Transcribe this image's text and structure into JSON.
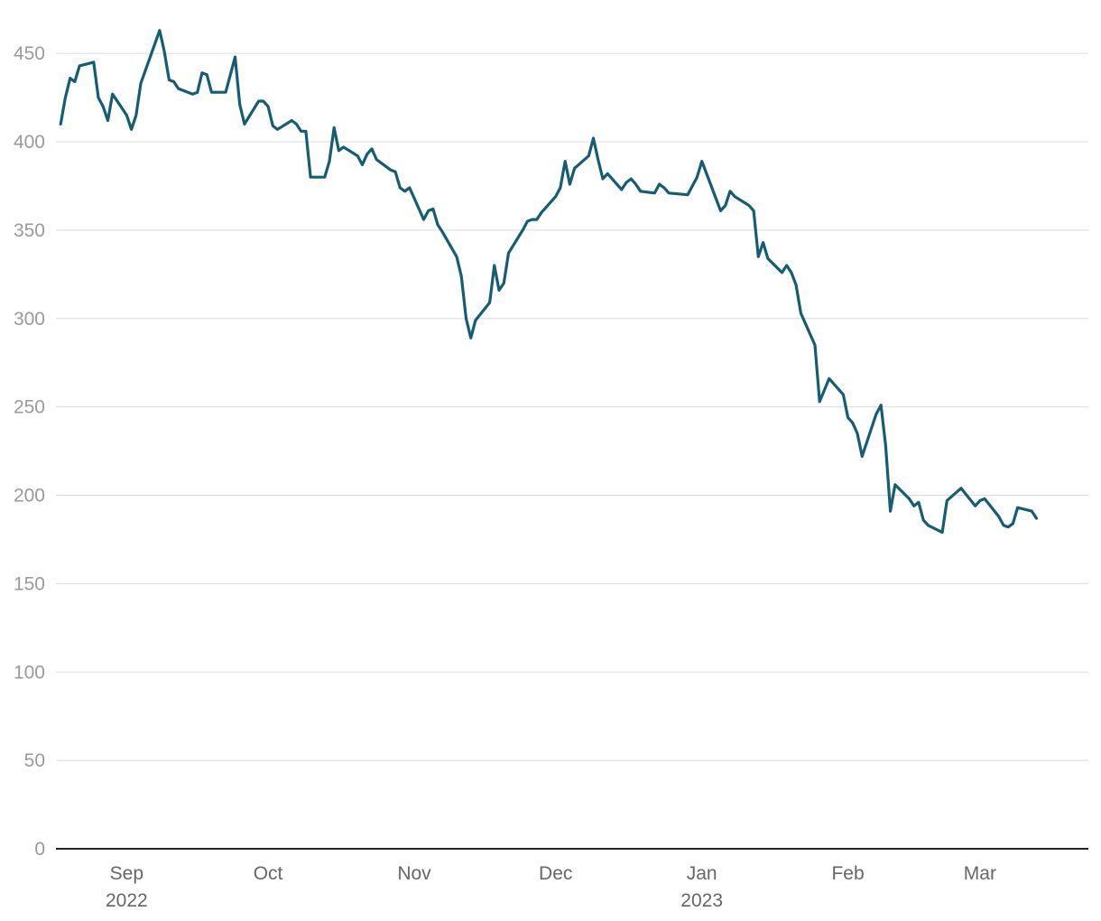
{
  "colors": {
    "series": "#165d74",
    "grid": "#dcdcdc",
    "axis": "#222222"
  },
  "chart_data": {
    "type": "line",
    "title": "",
    "xlabel": "",
    "ylabel": "",
    "ylim": [
      0,
      470
    ],
    "xlim": [
      "2022-08-17",
      "2023-03-24"
    ],
    "grid": true,
    "y_ticks": [
      0,
      50,
      100,
      150,
      200,
      250,
      300,
      350,
      400,
      450
    ],
    "x_ticks": [
      {
        "date": "2022-09-01",
        "label": "Sep",
        "sublabel": "2022"
      },
      {
        "date": "2022-10-01",
        "label": "Oct",
        "sublabel": ""
      },
      {
        "date": "2022-11-01",
        "label": "Nov",
        "sublabel": ""
      },
      {
        "date": "2022-12-01",
        "label": "Dec",
        "sublabel": ""
      },
      {
        "date": "2023-01-01",
        "label": "Jan",
        "sublabel": "2023"
      },
      {
        "date": "2023-02-01",
        "label": "Feb",
        "sublabel": ""
      },
      {
        "date": "2023-03-01",
        "label": "Mar",
        "sublabel": ""
      }
    ],
    "series": [
      {
        "points": [
          [
            "2022-08-18",
            410
          ],
          [
            "2022-08-19",
            425
          ],
          [
            "2022-08-20",
            436
          ],
          [
            "2022-08-21",
            434
          ],
          [
            "2022-08-22",
            443
          ],
          [
            "2022-08-25",
            445
          ],
          [
            "2022-08-26",
            425
          ],
          [
            "2022-08-27",
            420
          ],
          [
            "2022-08-28",
            412
          ],
          [
            "2022-08-29",
            427
          ],
          [
            "2022-09-01",
            415
          ],
          [
            "2022-09-02",
            407
          ],
          [
            "2022-09-03",
            415
          ],
          [
            "2022-09-04",
            433
          ],
          [
            "2022-09-08",
            463
          ],
          [
            "2022-09-09",
            451
          ],
          [
            "2022-09-10",
            435
          ],
          [
            "2022-09-11",
            434
          ],
          [
            "2022-09-12",
            430
          ],
          [
            "2022-09-15",
            427
          ],
          [
            "2022-09-16",
            428
          ],
          [
            "2022-09-17",
            439
          ],
          [
            "2022-09-18",
            438
          ],
          [
            "2022-09-19",
            428
          ],
          [
            "2022-09-22",
            428
          ],
          [
            "2022-09-24",
            448
          ],
          [
            "2022-09-25",
            421
          ],
          [
            "2022-09-26",
            410
          ],
          [
            "2022-09-29",
            423
          ],
          [
            "2022-09-30",
            423
          ],
          [
            "2022-10-01",
            420
          ],
          [
            "2022-10-02",
            409
          ],
          [
            "2022-10-03",
            407
          ],
          [
            "2022-10-06",
            412
          ],
          [
            "2022-10-07",
            410
          ],
          [
            "2022-10-08",
            406
          ],
          [
            "2022-10-09",
            406
          ],
          [
            "2022-10-10",
            380
          ],
          [
            "2022-10-13",
            380
          ],
          [
            "2022-10-14",
            389
          ],
          [
            "2022-10-15",
            408
          ],
          [
            "2022-10-16",
            395
          ],
          [
            "2022-10-17",
            397
          ],
          [
            "2022-10-20",
            392
          ],
          [
            "2022-10-21",
            387
          ],
          [
            "2022-10-22",
            393
          ],
          [
            "2022-10-23",
            396
          ],
          [
            "2022-10-24",
            390
          ],
          [
            "2022-10-27",
            384
          ],
          [
            "2022-10-28",
            383
          ],
          [
            "2022-10-29",
            374
          ],
          [
            "2022-10-30",
            372
          ],
          [
            "2022-10-31",
            374
          ],
          [
            "2022-11-03",
            356
          ],
          [
            "2022-11-04",
            361
          ],
          [
            "2022-11-05",
            362
          ],
          [
            "2022-11-06",
            353
          ],
          [
            "2022-11-07",
            349
          ],
          [
            "2022-11-10",
            335
          ],
          [
            "2022-11-11",
            324
          ],
          [
            "2022-11-12",
            300
          ],
          [
            "2022-11-13",
            289
          ],
          [
            "2022-11-14",
            299
          ],
          [
            "2022-11-17",
            309
          ],
          [
            "2022-11-18",
            330
          ],
          [
            "2022-11-19",
            316
          ],
          [
            "2022-11-20",
            320
          ],
          [
            "2022-11-21",
            337
          ],
          [
            "2022-11-24",
            350
          ],
          [
            "2022-11-25",
            355
          ],
          [
            "2022-11-26",
            356
          ],
          [
            "2022-11-27",
            356
          ],
          [
            "2022-11-28",
            360
          ],
          [
            "2022-12-01",
            369
          ],
          [
            "2022-12-02",
            374
          ],
          [
            "2022-12-03",
            389
          ],
          [
            "2022-12-04",
            376
          ],
          [
            "2022-12-05",
            385
          ],
          [
            "2022-12-08",
            392
          ],
          [
            "2022-12-09",
            402
          ],
          [
            "2022-12-10",
            390
          ],
          [
            "2022-12-11",
            379
          ],
          [
            "2022-12-12",
            382
          ],
          [
            "2022-12-15",
            373
          ],
          [
            "2022-12-16",
            377
          ],
          [
            "2022-12-17",
            379
          ],
          [
            "2022-12-18",
            376
          ],
          [
            "2022-12-19",
            372
          ],
          [
            "2022-12-22",
            371
          ],
          [
            "2022-12-23",
            376
          ],
          [
            "2022-12-24",
            374
          ],
          [
            "2022-12-25",
            371
          ],
          [
            "2022-12-29",
            370
          ],
          [
            "2022-12-31",
            380
          ],
          [
            "2023-01-01",
            389
          ],
          [
            "2023-01-03",
            375
          ],
          [
            "2023-01-05",
            361
          ],
          [
            "2023-01-06",
            364
          ],
          [
            "2023-01-07",
            372
          ],
          [
            "2023-01-08",
            369
          ],
          [
            "2023-01-11",
            364
          ],
          [
            "2023-01-12",
            361
          ],
          [
            "2023-01-13",
            335
          ],
          [
            "2023-01-14",
            343
          ],
          [
            "2023-01-15",
            334
          ],
          [
            "2023-01-18",
            326
          ],
          [
            "2023-01-19",
            330
          ],
          [
            "2023-01-20",
            326
          ],
          [
            "2023-01-21",
            319
          ],
          [
            "2023-01-22",
            303
          ],
          [
            "2023-01-25",
            285
          ],
          [
            "2023-01-26",
            253
          ],
          [
            "2023-01-28",
            266
          ],
          [
            "2023-01-31",
            257
          ],
          [
            "2023-02-01",
            244
          ],
          [
            "2023-02-02",
            241
          ],
          [
            "2023-02-03",
            235
          ],
          [
            "2023-02-04",
            222
          ],
          [
            "2023-02-07",
            246
          ],
          [
            "2023-02-08",
            251
          ],
          [
            "2023-02-09",
            228
          ],
          [
            "2023-02-10",
            191
          ],
          [
            "2023-02-11",
            206
          ],
          [
            "2023-02-14",
            198
          ],
          [
            "2023-02-15",
            194
          ],
          [
            "2023-02-16",
            196
          ],
          [
            "2023-02-17",
            186
          ],
          [
            "2023-02-18",
            183
          ],
          [
            "2023-02-21",
            179
          ],
          [
            "2023-02-22",
            197
          ],
          [
            "2023-02-25",
            204
          ],
          [
            "2023-02-28",
            194
          ],
          [
            "2023-03-01",
            197
          ],
          [
            "2023-03-02",
            198
          ],
          [
            "2023-03-05",
            188
          ],
          [
            "2023-03-06",
            183
          ],
          [
            "2023-03-07",
            182
          ],
          [
            "2023-03-08",
            184
          ],
          [
            "2023-03-09",
            193
          ],
          [
            "2023-03-12",
            191
          ],
          [
            "2023-03-13",
            187
          ]
        ]
      }
    ]
  }
}
